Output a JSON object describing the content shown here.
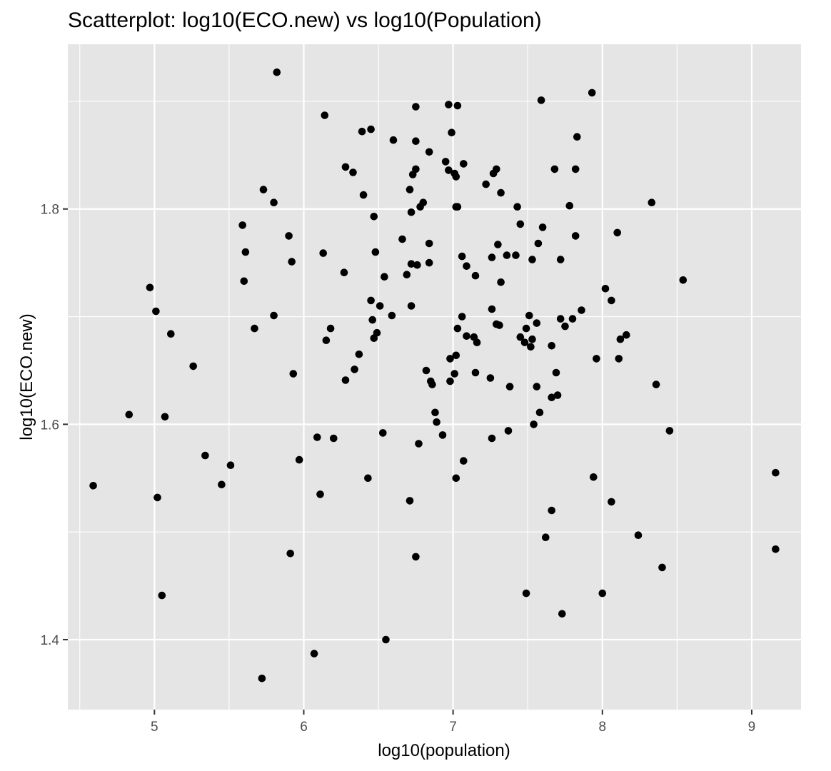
{
  "chart_data": {
    "type": "scatter",
    "title": "Scatterplot: log10(ECO.new) vs log10(Population)",
    "xlabel": "log10(population)",
    "ylabel": "log10(ECO.new)",
    "xlim": [
      4.42,
      9.33
    ],
    "ylim": [
      1.335,
      1.953
    ],
    "x_ticks": [
      5,
      6,
      7,
      8,
      9
    ],
    "y_ticks": [
      1.4,
      1.6,
      1.8
    ],
    "x_tick_labels": [
      "5",
      "6",
      "7",
      "8",
      "9"
    ],
    "y_tick_labels": [
      "1.4",
      "1.6",
      "1.8"
    ],
    "x_minor_ticks": [
      4.5,
      5.5,
      6.5,
      7.5,
      8.5
    ],
    "y_minor_ticks": [
      1.5,
      1.7,
      1.9
    ],
    "grid": true,
    "colors": {
      "panel_background": "#e5e5e5",
      "grid_line": "#ffffff",
      "point": "#000000",
      "tick_label": "#4d4d4d",
      "tick_mark": "#333333"
    },
    "points": [
      [
        4.59,
        1.543
      ],
      [
        4.83,
        1.609
      ],
      [
        4.97,
        1.727
      ],
      [
        5.01,
        1.705
      ],
      [
        5.02,
        1.532
      ],
      [
        5.05,
        1.441
      ],
      [
        5.07,
        1.607
      ],
      [
        5.11,
        1.684
      ],
      [
        5.26,
        1.654
      ],
      [
        5.34,
        1.571
      ],
      [
        5.45,
        1.544
      ],
      [
        5.51,
        1.562
      ],
      [
        5.59,
        1.785
      ],
      [
        5.61,
        1.76
      ],
      [
        5.6,
        1.733
      ],
      [
        5.67,
        1.689
      ],
      [
        5.72,
        1.364
      ],
      [
        5.73,
        1.818
      ],
      [
        5.8,
        1.806
      ],
      [
        5.8,
        1.701
      ],
      [
        5.82,
        1.927
      ],
      [
        5.9,
        1.775
      ],
      [
        5.91,
        1.48
      ],
      [
        5.92,
        1.751
      ],
      [
        5.93,
        1.647
      ],
      [
        5.97,
        1.567
      ],
      [
        6.07,
        1.387
      ],
      [
        6.09,
        1.588
      ],
      [
        6.11,
        1.535
      ],
      [
        6.13,
        1.759
      ],
      [
        6.14,
        1.887
      ],
      [
        6.15,
        1.678
      ],
      [
        6.18,
        1.689
      ],
      [
        6.2,
        1.587
      ],
      [
        6.27,
        1.741
      ],
      [
        6.28,
        1.641
      ],
      [
        6.28,
        1.839
      ],
      [
        6.33,
        1.834
      ],
      [
        6.34,
        1.651
      ],
      [
        6.37,
        1.665
      ],
      [
        6.39,
        1.872
      ],
      [
        6.4,
        1.813
      ],
      [
        6.43,
        1.55
      ],
      [
        6.45,
        1.715
      ],
      [
        6.45,
        1.874
      ],
      [
        6.46,
        1.697
      ],
      [
        6.47,
        1.68
      ],
      [
        6.47,
        1.793
      ],
      [
        6.48,
        1.76
      ],
      [
        6.49,
        1.685
      ],
      [
        6.51,
        1.71
      ],
      [
        6.53,
        1.592
      ],
      [
        6.54,
        1.737
      ],
      [
        6.55,
        1.4
      ],
      [
        6.59,
        1.701
      ],
      [
        6.6,
        1.864
      ],
      [
        6.66,
        1.772
      ],
      [
        6.69,
        1.739
      ],
      [
        6.71,
        1.818
      ],
      [
        6.71,
        1.529
      ],
      [
        6.72,
        1.749
      ],
      [
        6.72,
        1.797
      ],
      [
        6.72,
        1.71
      ],
      [
        6.73,
        1.832
      ],
      [
        6.75,
        1.895
      ],
      [
        6.75,
        1.863
      ],
      [
        6.75,
        1.837
      ],
      [
        6.75,
        1.477
      ],
      [
        6.76,
        1.748
      ],
      [
        6.77,
        1.582
      ],
      [
        6.78,
        1.802
      ],
      [
        6.8,
        1.806
      ],
      [
        6.82,
        1.65
      ],
      [
        6.84,
        1.853
      ],
      [
        6.84,
        1.75
      ],
      [
        6.84,
        1.768
      ],
      [
        6.85,
        1.64
      ],
      [
        6.86,
        1.637
      ],
      [
        6.88,
        1.611
      ],
      [
        6.89,
        1.602
      ],
      [
        6.93,
        1.59
      ],
      [
        6.95,
        1.844
      ],
      [
        6.97,
        1.897
      ],
      [
        6.97,
        1.836
      ],
      [
        6.98,
        1.64
      ],
      [
        6.98,
        1.661
      ],
      [
        6.99,
        1.871
      ],
      [
        7.01,
        1.833
      ],
      [
        7.01,
        1.647
      ],
      [
        7.02,
        1.55
      ],
      [
        7.02,
        1.664
      ],
      [
        7.02,
        1.83
      ],
      [
        7.02,
        1.802
      ],
      [
        7.03,
        1.802
      ],
      [
        7.03,
        1.896
      ],
      [
        7.03,
        1.689
      ],
      [
        7.06,
        1.756
      ],
      [
        7.06,
        1.7
      ],
      [
        7.07,
        1.566
      ],
      [
        7.07,
        1.842
      ],
      [
        7.09,
        1.747
      ],
      [
        7.09,
        1.682
      ],
      [
        7.14,
        1.681
      ],
      [
        7.15,
        1.738
      ],
      [
        7.15,
        1.648
      ],
      [
        7.16,
        1.676
      ],
      [
        7.22,
        1.823
      ],
      [
        7.25,
        1.643
      ],
      [
        7.26,
        1.755
      ],
      [
        7.26,
        1.707
      ],
      [
        7.26,
        1.587
      ],
      [
        7.27,
        1.833
      ],
      [
        7.29,
        1.837
      ],
      [
        7.29,
        1.693
      ],
      [
        7.3,
        1.767
      ],
      [
        7.31,
        1.692
      ],
      [
        7.32,
        1.815
      ],
      [
        7.32,
        1.732
      ],
      [
        7.36,
        1.757
      ],
      [
        7.37,
        1.594
      ],
      [
        7.38,
        1.635
      ],
      [
        7.42,
        1.757
      ],
      [
        7.43,
        1.802
      ],
      [
        7.45,
        1.681
      ],
      [
        7.45,
        1.786
      ],
      [
        7.48,
        1.676
      ],
      [
        7.49,
        1.689
      ],
      [
        7.49,
        1.443
      ],
      [
        7.51,
        1.701
      ],
      [
        7.52,
        1.672
      ],
      [
        7.53,
        1.679
      ],
      [
        7.53,
        1.753
      ],
      [
        7.54,
        1.6
      ],
      [
        7.56,
        1.694
      ],
      [
        7.56,
        1.635
      ],
      [
        7.57,
        1.768
      ],
      [
        7.58,
        1.611
      ],
      [
        7.59,
        1.901
      ],
      [
        7.6,
        1.783
      ],
      [
        7.62,
        1.495
      ],
      [
        7.66,
        1.52
      ],
      [
        7.66,
        1.673
      ],
      [
        7.66,
        1.625
      ],
      [
        7.68,
        1.837
      ],
      [
        7.69,
        1.648
      ],
      [
        7.7,
        1.627
      ],
      [
        7.72,
        1.698
      ],
      [
        7.72,
        1.753
      ],
      [
        7.73,
        1.424
      ],
      [
        7.75,
        1.691
      ],
      [
        7.78,
        1.803
      ],
      [
        7.8,
        1.698
      ],
      [
        7.82,
        1.775
      ],
      [
        7.82,
        1.837
      ],
      [
        7.83,
        1.867
      ],
      [
        7.86,
        1.706
      ],
      [
        7.93,
        1.908
      ],
      [
        7.94,
        1.551
      ],
      [
        7.96,
        1.661
      ],
      [
        8.0,
        1.443
      ],
      [
        8.02,
        1.726
      ],
      [
        8.06,
        1.715
      ],
      [
        8.06,
        1.528
      ],
      [
        8.1,
        1.778
      ],
      [
        8.11,
        1.661
      ],
      [
        8.12,
        1.679
      ],
      [
        8.16,
        1.683
      ],
      [
        8.24,
        1.497
      ],
      [
        8.33,
        1.806
      ],
      [
        8.36,
        1.637
      ],
      [
        8.4,
        1.467
      ],
      [
        8.45,
        1.594
      ],
      [
        8.54,
        1.734
      ],
      [
        9.16,
        1.555
      ],
      [
        9.16,
        1.484
      ]
    ]
  }
}
